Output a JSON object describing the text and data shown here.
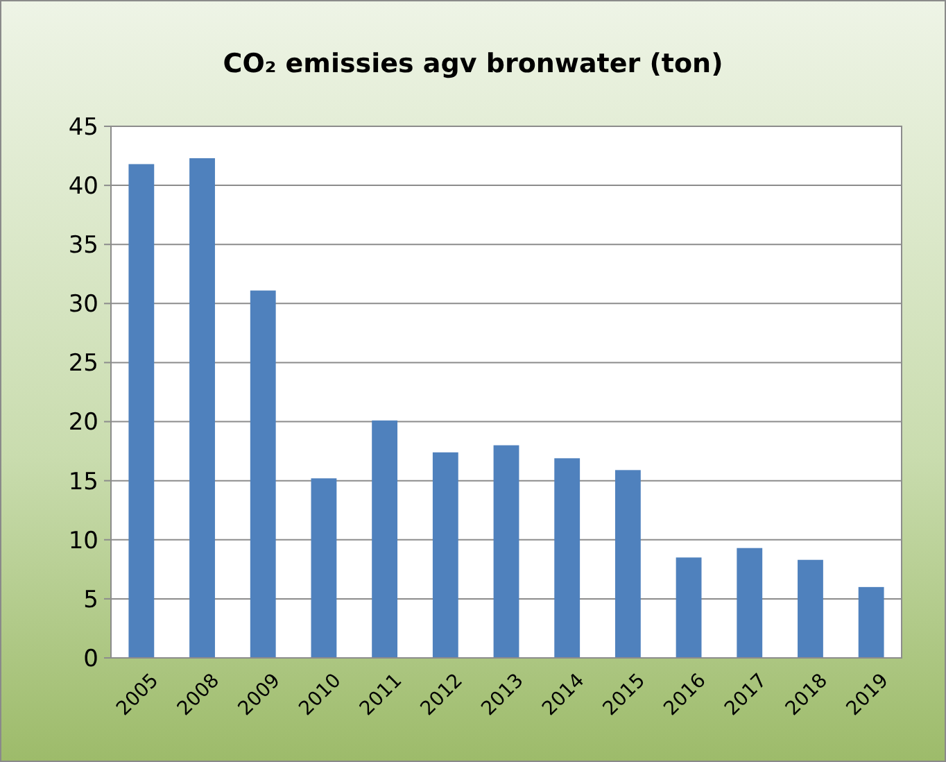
{
  "chart_data": {
    "type": "bar",
    "title": "CO₂ emissies agv bronwater (ton)",
    "categories": [
      "2005",
      "2008",
      "2009",
      "2010",
      "2011",
      "2012",
      "2013",
      "2014",
      "2015",
      "2016",
      "2017",
      "2018",
      "2019"
    ],
    "values": [
      41.8,
      42.3,
      31.1,
      15.2,
      20.1,
      17.4,
      18.0,
      16.9,
      15.9,
      8.5,
      9.3,
      8.3,
      6.0
    ],
    "color": "#4f81bd",
    "ylim": [
      0,
      45
    ],
    "yticks": [
      0,
      5,
      10,
      15,
      20,
      25,
      30,
      35,
      40,
      45
    ],
    "grid": "y"
  }
}
